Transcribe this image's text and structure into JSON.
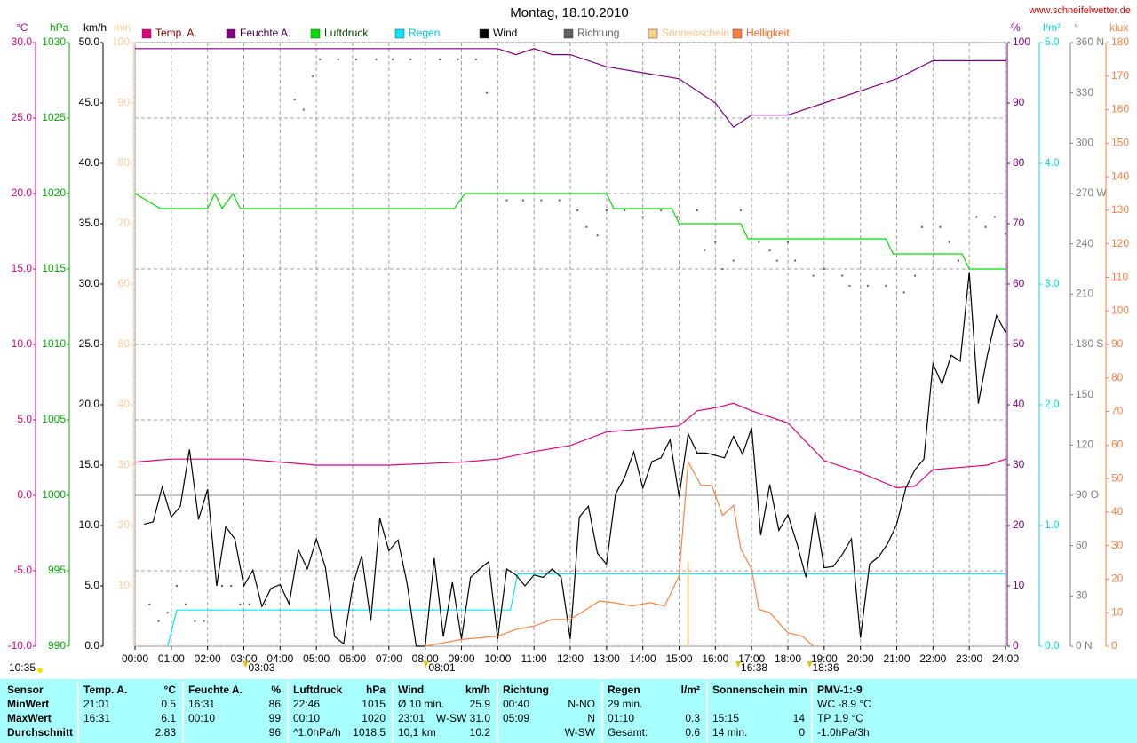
{
  "chart_data": {
    "type": "weather",
    "title": "Montag, 18.10.2010",
    "source": "www.schneifelwetter.de",
    "xlim": [
      0,
      24
    ],
    "xticks": [
      {
        "value": 0,
        "label": "00:00"
      },
      {
        "value": 1,
        "label": "01:00"
      },
      {
        "value": 2,
        "label": "02:00"
      },
      {
        "value": 3,
        "label": "03:00"
      },
      {
        "value": 4,
        "label": "04:00"
      },
      {
        "value": 5,
        "label": "05:00"
      },
      {
        "value": 6,
        "label": "06:00"
      },
      {
        "value": 7,
        "label": "07:00"
      },
      {
        "value": 8,
        "label": "08:00"
      },
      {
        "value": 9,
        "label": "09:00"
      },
      {
        "value": 10,
        "label": "10:00"
      },
      {
        "value": 11,
        "label": "11:00"
      },
      {
        "value": 12,
        "label": "12:00"
      },
      {
        "value": 13,
        "label": "13:00"
      },
      {
        "value": 14,
        "label": "14:00"
      },
      {
        "value": 15,
        "label": "15:00"
      },
      {
        "value": 16,
        "label": "16:00"
      },
      {
        "value": 17,
        "label": "17:00"
      },
      {
        "value": 18,
        "label": "18:00"
      },
      {
        "value": 19,
        "label": "19:00"
      },
      {
        "value": 20,
        "label": "20:00"
      },
      {
        "value": 21,
        "label": "21:00"
      },
      {
        "value": 22,
        "label": "22:00"
      },
      {
        "value": 23,
        "label": "23:00"
      },
      {
        "value": 24,
        "label": "24:00"
      }
    ],
    "grid": true,
    "axes": [
      {
        "unit": "°C",
        "side": "left",
        "color": "#e0007f",
        "lim": [
          -10,
          30
        ],
        "ticks": [
          {
            "value": -10,
            "label": "-10.0"
          },
          {
            "value": -5,
            "label": "-5.0"
          },
          {
            "value": 0,
            "label": "0.0"
          },
          {
            "value": 5,
            "label": "5.0"
          },
          {
            "value": 10,
            "label": "10.0"
          },
          {
            "value": 15,
            "label": "15.0"
          },
          {
            "value": 20,
            "label": "20.0"
          },
          {
            "value": 25,
            "label": "25.0"
          },
          {
            "value": 30,
            "label": "30.0"
          }
        ]
      },
      {
        "unit": "hPa",
        "side": "left",
        "color": "#00b000",
        "lim": [
          990,
          1030
        ],
        "ticks": [
          990,
          995,
          1000,
          1005,
          1010,
          1015,
          1020,
          1025,
          1030
        ]
      },
      {
        "unit": "km/h",
        "side": "left",
        "color": "#000000",
        "lim": [
          0,
          50
        ],
        "ticks": [
          {
            "value": 0,
            "label": "0.0"
          },
          {
            "value": 5,
            "label": "5.0"
          },
          {
            "value": 10,
            "label": "10.0"
          },
          {
            "value": 15,
            "label": "15.0"
          },
          {
            "value": 20,
            "label": "20.0"
          },
          {
            "value": 25,
            "label": "25.0"
          },
          {
            "value": 30,
            "label": "30.0"
          },
          {
            "value": 35,
            "label": "35.0"
          },
          {
            "value": 40,
            "label": "40.0"
          },
          {
            "value": 45,
            "label": "45.0"
          },
          {
            "value": 50,
            "label": "50.0"
          }
        ]
      },
      {
        "unit": "min",
        "side": "left",
        "color": "#ffcc99",
        "lim": [
          0,
          100
        ],
        "ticks": [
          10,
          20,
          30,
          40,
          50,
          60,
          70,
          80,
          90,
          100
        ]
      },
      {
        "unit": "%",
        "side": "right",
        "color": "#800080",
        "lim": [
          0,
          100
        ],
        "ticks": [
          0,
          10,
          20,
          30,
          40,
          50,
          60,
          70,
          80,
          90,
          100
        ]
      },
      {
        "unit": "l/m²",
        "side": "right",
        "color": "#00d8e8",
        "lim": [
          0,
          5
        ],
        "ticks": [
          {
            "value": 0,
            "label": "0.0"
          },
          {
            "value": 1,
            "label": "1.0"
          },
          {
            "value": 2,
            "label": "2.0"
          },
          {
            "value": 3,
            "label": "3.0"
          },
          {
            "value": 4,
            "label": "4.0"
          },
          {
            "value": 5,
            "label": "5.0"
          }
        ]
      },
      {
        "unit": "°",
        "side": "right",
        "color": "#808080",
        "lim": [
          0,
          360
        ],
        "ticks": [
          {
            "value": 0,
            "label": "0 N"
          },
          30,
          60,
          {
            "value": 90,
            "label": "90 O"
          },
          120,
          150,
          {
            "value": 180,
            "label": "180 S"
          },
          210,
          240,
          {
            "value": 270,
            "label": "270 W"
          },
          300,
          330,
          {
            "value": 360,
            "label": "360 N"
          }
        ]
      },
      {
        "unit": "klux",
        "side": "right",
        "color": "#ff8040",
        "lim": [
          0,
          180
        ],
        "ticks": [
          0,
          10,
          20,
          30,
          40,
          50,
          60,
          70,
          80,
          90,
          100,
          110,
          120,
          130,
          140,
          150,
          160,
          170,
          180
        ]
      }
    ],
    "series": [
      {
        "name": "Temp. A.",
        "color": "#e0007f",
        "legend_text_color": "#800000",
        "style": "line",
        "axis": 0,
        "x": [
          0,
          0.5,
          1,
          2,
          3,
          4,
          5,
          6,
          7,
          8,
          9,
          10,
          11,
          12,
          13,
          14,
          15,
          15.5,
          16,
          16.5,
          17,
          18,
          19,
          20,
          21,
          21.5,
          22,
          23,
          23.5,
          24
        ],
        "values": [
          2.2,
          2.3,
          2.4,
          2.4,
          2.4,
          2.2,
          2.0,
          2.0,
          2.0,
          2.1,
          2.2,
          2.4,
          2.9,
          3.3,
          4.2,
          4.4,
          4.6,
          5.6,
          5.8,
          6.1,
          5.6,
          4.8,
          2.3,
          1.5,
          0.5,
          0.6,
          1.7,
          1.9,
          2.0,
          2.4
        ]
      },
      {
        "name": "Feuchte A.",
        "color": "#800080",
        "legend_text_color": "#400040",
        "style": "line",
        "axis": 4,
        "x": [
          0,
          10,
          10.5,
          11,
          11.5,
          12,
          13,
          14,
          15,
          16,
          16.5,
          17,
          18,
          19,
          20,
          21,
          22,
          23,
          24
        ],
        "values": [
          99,
          99,
          98,
          99,
          98,
          98,
          96,
          95,
          94,
          90,
          86,
          88,
          88,
          90,
          92,
          94,
          97,
          97,
          97
        ]
      },
      {
        "name": "Luftdruck",
        "color": "#00e000",
        "legend_text_color": "#004000",
        "style": "line",
        "axis": 1,
        "x": [
          0,
          0.7,
          2,
          2.2,
          2.4,
          2.7,
          2.9,
          8.8,
          9.1,
          13,
          13.2,
          14.8,
          15,
          16.7,
          16.9,
          20.7,
          20.9,
          22.8,
          23,
          24
        ],
        "values": [
          1020,
          1019,
          1019,
          1020,
          1019,
          1020,
          1019,
          1019,
          1020,
          1020,
          1019,
          1019,
          1018,
          1018,
          1017,
          1017,
          1016,
          1016,
          1015,
          1015
        ]
      },
      {
        "name": "Regen",
        "color": "#00e8ff",
        "legend_text_color": "#00c8e0",
        "style": "line",
        "axis": 5,
        "x": [
          0.9,
          1.15,
          10.35,
          10.55,
          24
        ],
        "values": [
          0,
          0.3,
          0.3,
          0.6,
          0.6
        ]
      },
      {
        "name": "Wind",
        "color": "#000000",
        "legend_text_color": "#000000",
        "style": "line",
        "axis": 2,
        "x": [
          0.25,
          0.5,
          0.75,
          1,
          1.25,
          1.5,
          1.75,
          2,
          2.25,
          2.5,
          2.75,
          3,
          3.25,
          3.5,
          3.75,
          4,
          4.25,
          4.5,
          4.75,
          5,
          5.25,
          5.5,
          5.75,
          6,
          6.25,
          6.5,
          6.75,
          7,
          7.25,
          7.5,
          7.75,
          8,
          8.25,
          8.5,
          8.75,
          9,
          9.25,
          9.5,
          9.75,
          10,
          10.25,
          10.5,
          10.75,
          11,
          11.25,
          11.5,
          11.75,
          12,
          12.25,
          12.5,
          12.75,
          13,
          13.25,
          13.5,
          13.75,
          14,
          14.25,
          14.5,
          14.75,
          15,
          15.25,
          15.5,
          15.75,
          16,
          16.25,
          16.5,
          16.75,
          17,
          17.25,
          17.5,
          17.75,
          18,
          18.25,
          18.5,
          18.75,
          19,
          19.25,
          19.5,
          19.75,
          20,
          20.25,
          20.5,
          20.75,
          21,
          21.25,
          21.5,
          21.75,
          22,
          22.25,
          22.5,
          22.75,
          23,
          23.25,
          23.5,
          23.75,
          24
        ],
        "values": [
          10.1,
          10.3,
          13.2,
          10.7,
          11.6,
          16.3,
          10.5,
          13.0,
          5.0,
          9.9,
          8.9,
          5.0,
          6.3,
          3.3,
          4.8,
          5.1,
          3.5,
          8.0,
          6.4,
          8.9,
          6.5,
          0.8,
          0.2,
          5.0,
          7.5,
          2.1,
          10.6,
          7.9,
          8.8,
          5.2,
          0,
          0,
          7.3,
          0.8,
          5.3,
          0.6,
          5.7,
          6.4,
          7.0,
          0.6,
          6.4,
          5.9,
          5.0,
          5.9,
          5.7,
          6.4,
          5.7,
          0.6,
          10.7,
          11.6,
          7.7,
          6.8,
          12.6,
          14.0,
          16.1,
          13.1,
          15.3,
          15.6,
          17.1,
          12.4,
          17.6,
          16.0,
          16.0,
          15.8,
          15.6,
          17.4,
          15.9,
          18.1,
          9.2,
          13.4,
          9.6,
          10.9,
          8.5,
          5.7,
          11.1,
          6.5,
          6.6,
          7.6,
          8.9,
          0.7,
          6.8,
          7.4,
          8.5,
          10.1,
          13.1,
          14.6,
          15.5,
          23.4,
          21.7,
          24.1,
          23.6,
          31.0,
          20.1,
          24.1,
          27.4,
          26.0
        ]
      },
      {
        "name": "Richtung",
        "color": "#606060",
        "legend_text_color": "#606060",
        "style": "dots",
        "axis": 6,
        "x": [
          0.4,
          0.65,
          0.9,
          1.15,
          1.4,
          1.65,
          1.9,
          2.4,
          2.65,
          2.9,
          3.15,
          3.6,
          4.4,
          4.65,
          4.9,
          5.1,
          5.6,
          6.1,
          6.65,
          7.1,
          7.6,
          8.4,
          8.9,
          9.4,
          9.7,
          10.25,
          10.7,
          11.2,
          11.7,
          12.2,
          12.45,
          12.75,
          13,
          13.5,
          14,
          14.5,
          14.95,
          15.5,
          15.7,
          16,
          16.2,
          16.5,
          16.7,
          17.2,
          17.5,
          17.7,
          18,
          18.2,
          18.7,
          19,
          19.5,
          19.7,
          20.2,
          20.7,
          21.2,
          21.5,
          21.7,
          22.2,
          22.45,
          22.7,
          23.2,
          23.45,
          23.7,
          24
        ],
        "values": [
          25,
          15,
          20,
          36,
          25,
          15,
          15,
          36,
          36,
          25,
          25,
          25,
          326,
          320,
          340,
          350,
          350,
          350,
          350,
          350,
          350,
          350,
          350,
          350,
          330,
          266,
          266,
          266,
          266,
          260,
          250,
          245,
          260,
          260,
          256,
          260,
          256,
          260,
          236,
          241,
          225,
          230,
          260,
          241,
          236,
          230,
          241,
          230,
          221,
          225,
          221,
          215,
          215,
          215,
          211,
          221,
          250,
          250,
          241,
          230,
          256,
          250,
          256,
          246
        ]
      },
      {
        "name": "Sonnenschein",
        "color": "#ffd090",
        "legend_text_color": "#ffc080",
        "style": "bars",
        "axis": 3,
        "x": [
          15.25
        ],
        "values": [
          14
        ]
      },
      {
        "name": "Helligkeit",
        "color": "#ff8040",
        "legend_text_color": "#ff6020",
        "style": "line",
        "axis": 7,
        "x": [
          8.0,
          9.0,
          10.0,
          10.5,
          11.0,
          11.5,
          12.0,
          12.45,
          12.8,
          13.2,
          13.7,
          14.2,
          14.6,
          15.0,
          15.25,
          15.6,
          15.9,
          16.2,
          16.5,
          16.7,
          17.0,
          17.2,
          17.5,
          18.0,
          18.4,
          18.7
        ],
        "values": [
          0,
          2,
          3,
          5,
          6,
          8,
          8,
          11,
          13.5,
          13,
          12,
          13,
          12,
          21,
          55,
          48,
          48,
          39,
          42,
          29,
          23,
          11,
          10,
          4,
          3,
          0
        ]
      }
    ],
    "left_note": "10:35",
    "annotations": [
      {
        "text": "03:03",
        "x": 3.05
      },
      {
        "text": "08:01",
        "x": 8.02
      },
      {
        "text": "16:38",
        "x": 16.63
      },
      {
        "text": "18:36",
        "x": 18.6
      }
    ]
  },
  "table": {
    "sensor_header": "Sensor",
    "columns": [
      {
        "name": "Temp. A.",
        "unit": "°C"
      },
      {
        "name": "Feuchte A.",
        "unit": "%"
      },
      {
        "name": "Luftdruck",
        "unit": "hPa"
      },
      {
        "name": "Wind",
        "unit": "km/h"
      },
      {
        "name": "Richtung"
      },
      {
        "name": "Regen",
        "unit": "l/m²"
      },
      {
        "name": "Sonnenschein min"
      },
      {
        "name": "PMV-1:-9"
      }
    ],
    "rows": [
      {
        "label": "MinWert",
        "cells": [
          {
            "l": "21:01",
            "r": "0.5"
          },
          {
            "l": "16:31",
            "r": "86"
          },
          {
            "l": "22:46",
            "r": "1015"
          },
          {
            "l": "Ø 10 min.",
            "r": "25.9"
          },
          {
            "l": "00:40",
            "r": "N-NO"
          },
          {
            "l": "29 min."
          },
          {},
          {
            "l": "WC -8.9 °C"
          }
        ]
      },
      {
        "label": "MaxWert",
        "cells": [
          {
            "l": "16:31",
            "r": "6.1"
          },
          {
            "l": "00:10",
            "r": "99"
          },
          {
            "l": "00:10",
            "r": "1020"
          },
          {
            "l": "23:01",
            "r": "W-SW 31.0"
          },
          {
            "l": "05:09",
            "r": "N"
          },
          {
            "l": "01:10",
            "r": "0.3"
          },
          {
            "l": "15:15",
            "r": "14"
          },
          {
            "l": "TP 1.9 °C"
          }
        ]
      },
      {
        "label": "Durchschnitt",
        "cells": [
          {
            "r": "2.83"
          },
          {
            "r": "96"
          },
          {
            "l": "^1.0hPa/h",
            "r": "1018.5"
          },
          {
            "l": "10,1 km",
            "r": "10.2"
          },
          {
            "r": "W-SW"
          },
          {
            "l": "Gesamt:",
            "r": "0.6"
          },
          {
            "l": "14 min.",
            "r": "0"
          },
          {
            "l": "-1.0hPa/3h"
          }
        ]
      }
    ]
  }
}
